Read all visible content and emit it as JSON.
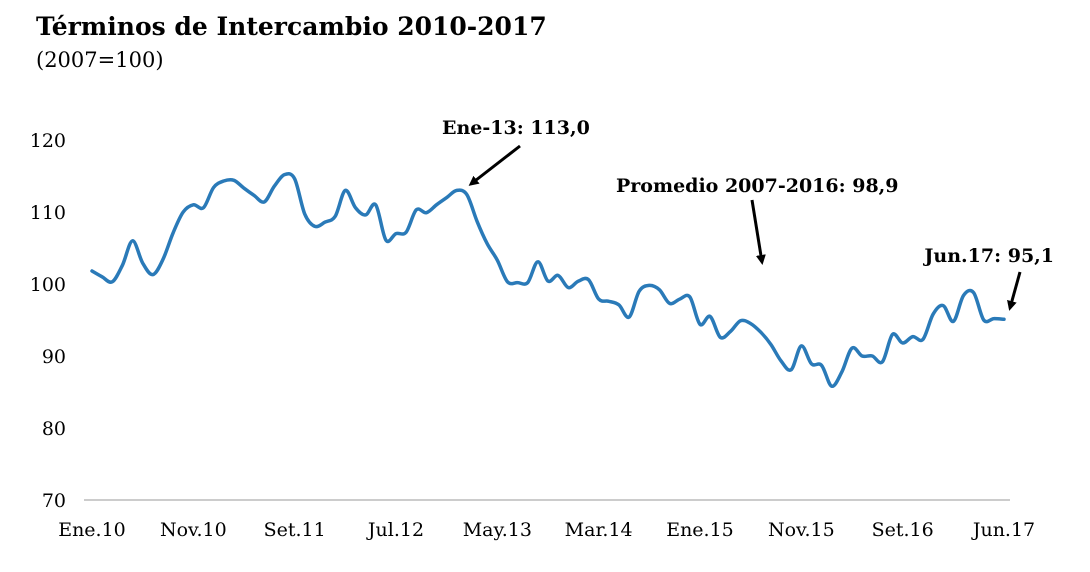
{
  "title": "Términos de Intercambio 2010-2017",
  "subtitle": "(2007=100)",
  "chart_data": {
    "type": "line",
    "title": "Términos de Intercambio 2010-2017",
    "subtitle": "(2007=100)",
    "ylim": [
      70,
      120
    ],
    "yticks": [
      70,
      80,
      90,
      100,
      110,
      120
    ],
    "xtick_labels": [
      "Ene.10",
      "Nov.10",
      "Set.11",
      "Jul.12",
      "May.13",
      "Mar.14",
      "Ene.15",
      "Nov.15",
      "Set.16",
      "Jun.17"
    ],
    "x_start": "Ene.10",
    "x_end": "Jun.17",
    "grid": false,
    "series": [
      {
        "color": "#2a7ab8",
        "values": [
          101.8,
          101.0,
          100.3,
          102.6,
          106.0,
          102.9,
          101.3,
          103.4,
          107.1,
          110.0,
          111.0,
          110.6,
          113.4,
          114.3,
          114.4,
          113.3,
          112.3,
          111.4,
          113.6,
          115.2,
          114.6,
          109.7,
          108.0,
          108.6,
          109.4,
          113.0,
          110.6,
          109.6,
          111.0,
          106.1,
          107.0,
          107.2,
          110.3,
          109.9,
          111.0,
          112.0,
          113.0,
          112.4,
          108.7,
          105.6,
          103.3,
          100.3,
          100.2,
          100.2,
          103.1,
          100.4,
          101.2,
          99.5,
          100.4,
          100.6,
          97.9,
          97.6,
          97.1,
          95.4,
          99.0,
          99.8,
          99.2,
          97.3,
          97.9,
          98.2,
          94.4,
          95.5,
          92.6,
          93.4,
          94.9,
          94.5,
          93.3,
          91.6,
          89.3,
          88.1,
          91.4,
          88.9,
          88.7,
          85.8,
          87.8,
          91.1,
          90.0,
          90.0,
          89.2,
          93.0,
          91.8,
          92.7,
          92.3,
          95.8,
          97.0,
          94.8,
          98.4,
          98.8,
          95.0,
          95.2,
          95.1
        ]
      }
    ],
    "annotations": [
      {
        "text": "Ene-13: 113,0",
        "x": "Ene.13",
        "y": 113.0
      },
      {
        "text": "Promedio 2007-2016: 98,9",
        "y": 98.9
      },
      {
        "text": "Jun.17: 95,1",
        "x": "Jun.17",
        "y": 95.1
      }
    ]
  }
}
